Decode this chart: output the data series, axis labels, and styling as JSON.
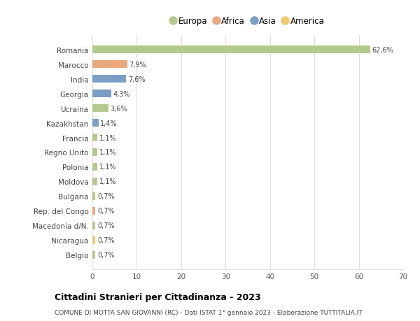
{
  "countries": [
    "Romania",
    "Marocco",
    "India",
    "Georgia",
    "Ucraina",
    "Kazakhstan",
    "Francia",
    "Regno Unito",
    "Polonia",
    "Moldova",
    "Bulgaria",
    "Rep. del Congo",
    "Macedonia d/N.",
    "Nicaragua",
    "Belgio"
  ],
  "values": [
    62.6,
    7.9,
    7.6,
    4.3,
    3.6,
    1.4,
    1.1,
    1.1,
    1.1,
    1.1,
    0.7,
    0.7,
    0.7,
    0.7,
    0.7
  ],
  "labels": [
    "62,6%",
    "7,9%",
    "7,6%",
    "4,3%",
    "3,6%",
    "1,4%",
    "1,1%",
    "1,1%",
    "1,1%",
    "1,1%",
    "0,7%",
    "0,7%",
    "0,7%",
    "0,7%",
    "0,7%"
  ],
  "continents": [
    "Europa",
    "Africa",
    "Asia",
    "Asia",
    "Europa",
    "Asia",
    "Europa",
    "Europa",
    "Europa",
    "Europa",
    "Europa",
    "Africa",
    "Europa",
    "America",
    "Europa"
  ],
  "colors": {
    "Europa": "#b5c98e",
    "Africa": "#e8a87c",
    "Asia": "#7b9ec7",
    "America": "#f0c96e"
  },
  "legend_order": [
    "Europa",
    "Africa",
    "Asia",
    "America"
  ],
  "title": "Cittadini Stranieri per Cittadinanza - 2023",
  "subtitle": "COMUNE DI MOTTA SAN GIOVANNI (RC) - Dati ISTAT 1° gennaio 2023 - Elaborazione TUTTITALIA.IT",
  "xlim": [
    0,
    70
  ],
  "xticks": [
    0,
    10,
    20,
    30,
    40,
    50,
    60,
    70
  ],
  "bg_color": "#ffffff",
  "grid_color": "#dddddd",
  "bar_height": 0.55
}
